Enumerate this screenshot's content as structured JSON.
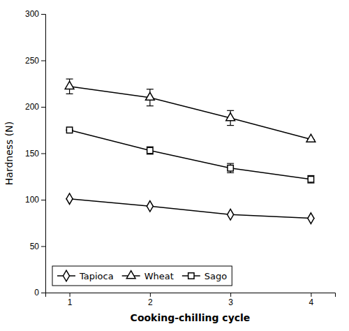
{
  "chart_data": {
    "type": "line",
    "xlabel": "Cooking-chilling cycle",
    "ylabel": "Hardness (N)",
    "x": [
      1,
      2,
      3,
      4
    ],
    "xlim": [
      0.7,
      4.3
    ],
    "ylim": [
      0,
      300
    ],
    "xticks": [
      1,
      2,
      3,
      4
    ],
    "yticks": [
      0,
      50,
      100,
      150,
      200,
      250,
      300
    ],
    "grid": false,
    "legend": "lower left",
    "series": [
      {
        "name": "Tapioca",
        "color": "#000000",
        "marker": "diamond",
        "values": [
          101,
          93,
          84,
          80
        ],
        "errors": [
          0,
          0,
          0,
          0
        ]
      },
      {
        "name": "Wheat",
        "color": "#000000",
        "marker": "triangle",
        "values": [
          222,
          210,
          188,
          165
        ],
        "errors": [
          8,
          9,
          8,
          0
        ]
      },
      {
        "name": "Sago",
        "color": "#000000",
        "marker": "square",
        "values": [
          175,
          153,
          134,
          122
        ],
        "errors": [
          0,
          4,
          5,
          4
        ]
      }
    ]
  }
}
